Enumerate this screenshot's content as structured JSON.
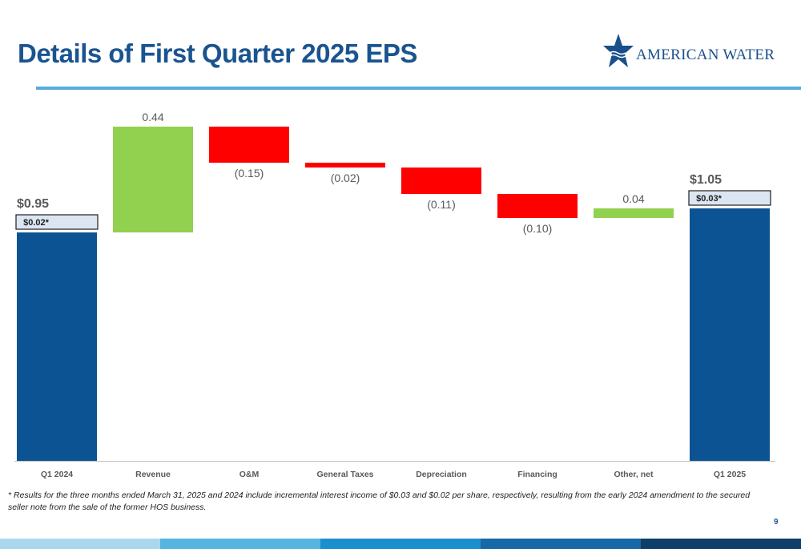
{
  "title": "Details of First Quarter 2025 EPS",
  "logo": {
    "text": "AMERICAN WATER",
    "icon": "star-water-icon"
  },
  "page_number": "9",
  "footnote": "* Results for the three months ended March 31, 2025 and 2024 include incremental interest income of $0.03 and $0.02 per share, respectively, resulting from the early 2024 amendment to the secured seller note from the sale of the former HOS business.",
  "colors": {
    "total": "#0c5394",
    "increase": "#92d050",
    "decrease": "#ff0000",
    "title": "#1a5490",
    "rule": "#56acd8",
    "band": [
      "#a9d7ee",
      "#56b4e0",
      "#1b8fce",
      "#1669a6",
      "#0f3e68"
    ]
  },
  "chart_data": {
    "type": "bar",
    "subtype": "waterfall",
    "title": "",
    "xlabel": "",
    "ylabel": "",
    "categories": [
      "Q1 2024",
      "Revenue",
      "O&M",
      "General Taxes",
      "Depreciation",
      "Financing",
      "Other, net",
      "Q1 2025"
    ],
    "values": [
      0.95,
      0.44,
      -0.15,
      -0.02,
      -0.11,
      -0.1,
      0.04,
      1.05
    ],
    "kinds": [
      "total",
      "increase",
      "decrease",
      "decrease",
      "decrease",
      "decrease",
      "increase",
      "total"
    ],
    "labels": [
      "$0.95",
      "0.44",
      "(0.15)",
      "(0.02)",
      "(0.11)",
      "(0.10)",
      "0.04",
      "$1.05"
    ],
    "annotations": [
      {
        "category": "Q1 2024",
        "text": "$0.02*"
      },
      {
        "category": "Q1 2025",
        "text": "$0.03*"
      }
    ],
    "grid": false,
    "legend": "none"
  }
}
